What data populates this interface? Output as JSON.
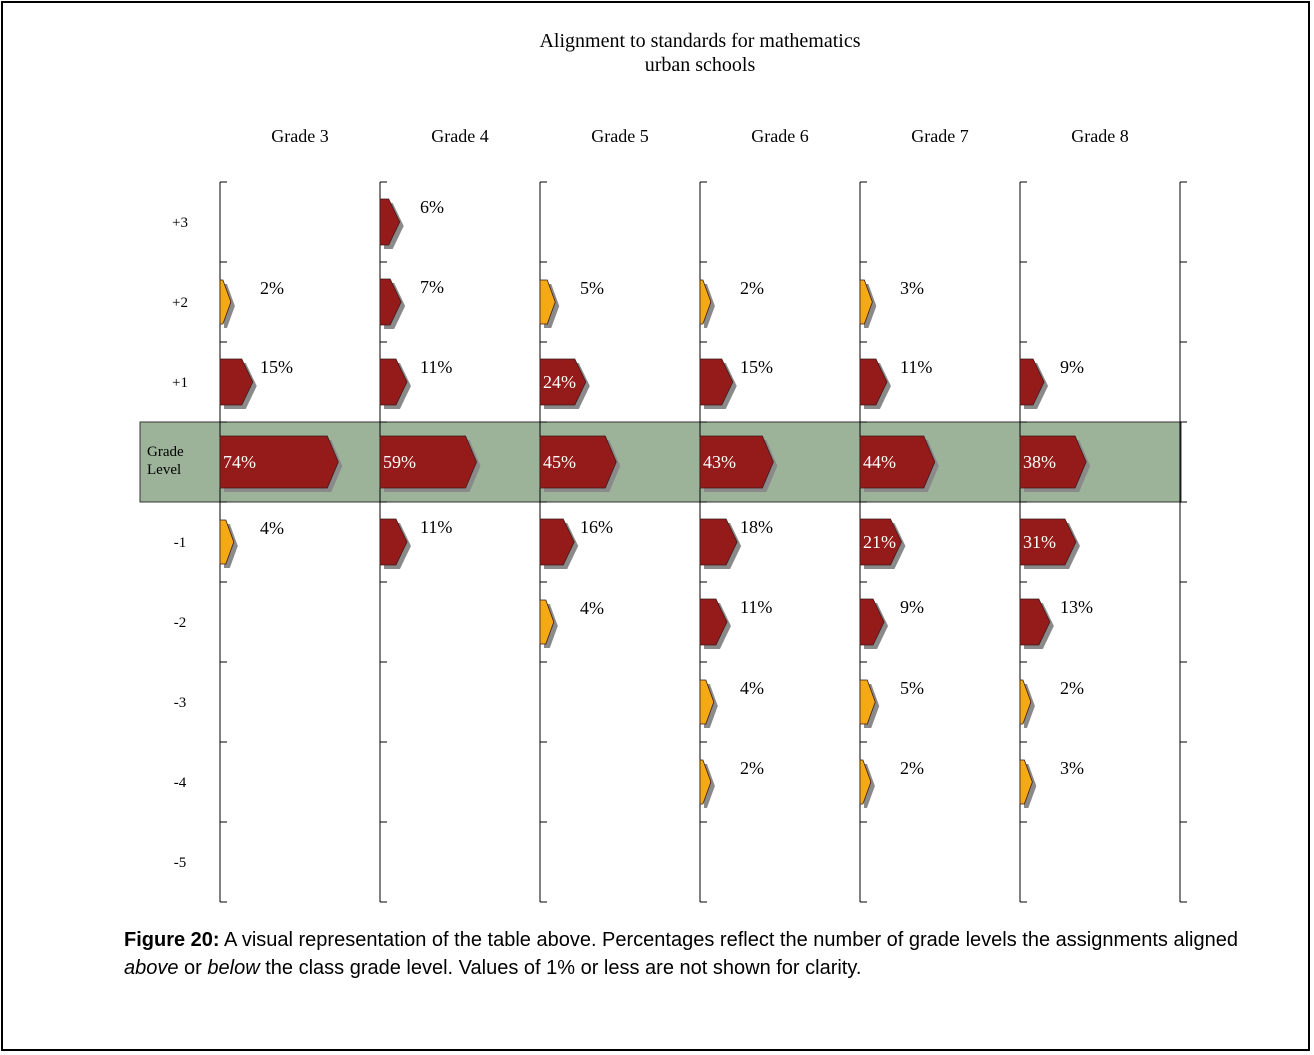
{
  "caption": {
    "figure_label": "Figure 20:",
    "text_1": " A visual representation of the table above. Percentages reflect the number of grade levels the assignments aligned ",
    "em_1": "above",
    "text_2": " or ",
    "em_2": "below",
    "text_3": " the class grade level. Values of 1% or less are not shown for clarity."
  },
  "colors": {
    "major": "#951b1b",
    "minor": "#f5a914",
    "band": "#9cb39a",
    "shadow": "#8a8a8a"
  },
  "chart_data": {
    "type": "bar",
    "title": [
      "Alignment to standards for mathematics",
      "urban schools"
    ],
    "categories": [
      "Grade 3",
      "Grade 4",
      "Grade 5",
      "Grade 6",
      "Grade 7",
      "Grade 8"
    ],
    "rows": [
      "+3",
      "+2",
      "+1",
      "Grade Level",
      "-1",
      "-2",
      "-3",
      "-4",
      "-5"
    ],
    "band_label": "Grade Level",
    "cells": [
      {
        "col": 0,
        "row": 1,
        "value": 2,
        "label": "2%"
      },
      {
        "col": 0,
        "row": 2,
        "value": 15,
        "label": "15%"
      },
      {
        "col": 0,
        "row": 3,
        "value": 74,
        "label": "74%"
      },
      {
        "col": 0,
        "row": 4,
        "value": 4,
        "label": "4%"
      },
      {
        "col": 1,
        "row": 0,
        "value": 6,
        "label": "6%"
      },
      {
        "col": 1,
        "row": 1,
        "value": 7,
        "label": "7%"
      },
      {
        "col": 1,
        "row": 2,
        "value": 11,
        "label": "11%"
      },
      {
        "col": 1,
        "row": 3,
        "value": 59,
        "label": "59%"
      },
      {
        "col": 1,
        "row": 4,
        "value": 11,
        "label": "11%"
      },
      {
        "col": 2,
        "row": 1,
        "value": 5,
        "label": "5%"
      },
      {
        "col": 2,
        "row": 2,
        "value": 24,
        "label": "24%"
      },
      {
        "col": 2,
        "row": 3,
        "value": 45,
        "label": "45%"
      },
      {
        "col": 2,
        "row": 4,
        "value": 16,
        "label": "16%"
      },
      {
        "col": 2,
        "row": 5,
        "value": 4,
        "label": "4%"
      },
      {
        "col": 3,
        "row": 1,
        "value": 2,
        "label": "2%"
      },
      {
        "col": 3,
        "row": 2,
        "value": 15,
        "label": "15%"
      },
      {
        "col": 3,
        "row": 3,
        "value": 43,
        "label": "43%"
      },
      {
        "col": 3,
        "row": 4,
        "value": 18,
        "label": "18%"
      },
      {
        "col": 3,
        "row": 5,
        "value": 11,
        "label": "11%"
      },
      {
        "col": 3,
        "row": 6,
        "value": 4,
        "label": "4%"
      },
      {
        "col": 3,
        "row": 7,
        "value": 2,
        "label": "2%"
      },
      {
        "col": 4,
        "row": 1,
        "value": 3,
        "label": "3%"
      },
      {
        "col": 4,
        "row": 2,
        "value": 11,
        "label": "11%"
      },
      {
        "col": 4,
        "row": 3,
        "value": 44,
        "label": "44%"
      },
      {
        "col": 4,
        "row": 4,
        "value": 21,
        "label": "21%"
      },
      {
        "col": 4,
        "row": 5,
        "value": 9,
        "label": "9%"
      },
      {
        "col": 4,
        "row": 6,
        "value": 5,
        "label": "5%"
      },
      {
        "col": 4,
        "row": 7,
        "value": 2,
        "label": "2%"
      },
      {
        "col": 5,
        "row": 2,
        "value": 9,
        "label": "9%"
      },
      {
        "col": 5,
        "row": 3,
        "value": 38,
        "label": "38%"
      },
      {
        "col": 5,
        "row": 4,
        "value": 31,
        "label": "31%"
      },
      {
        "col": 5,
        "row": 5,
        "value": 13,
        "label": "13%"
      },
      {
        "col": 5,
        "row": 6,
        "value": 2,
        "label": "2%"
      },
      {
        "col": 5,
        "row": 7,
        "value": 3,
        "label": "3%"
      }
    ]
  }
}
